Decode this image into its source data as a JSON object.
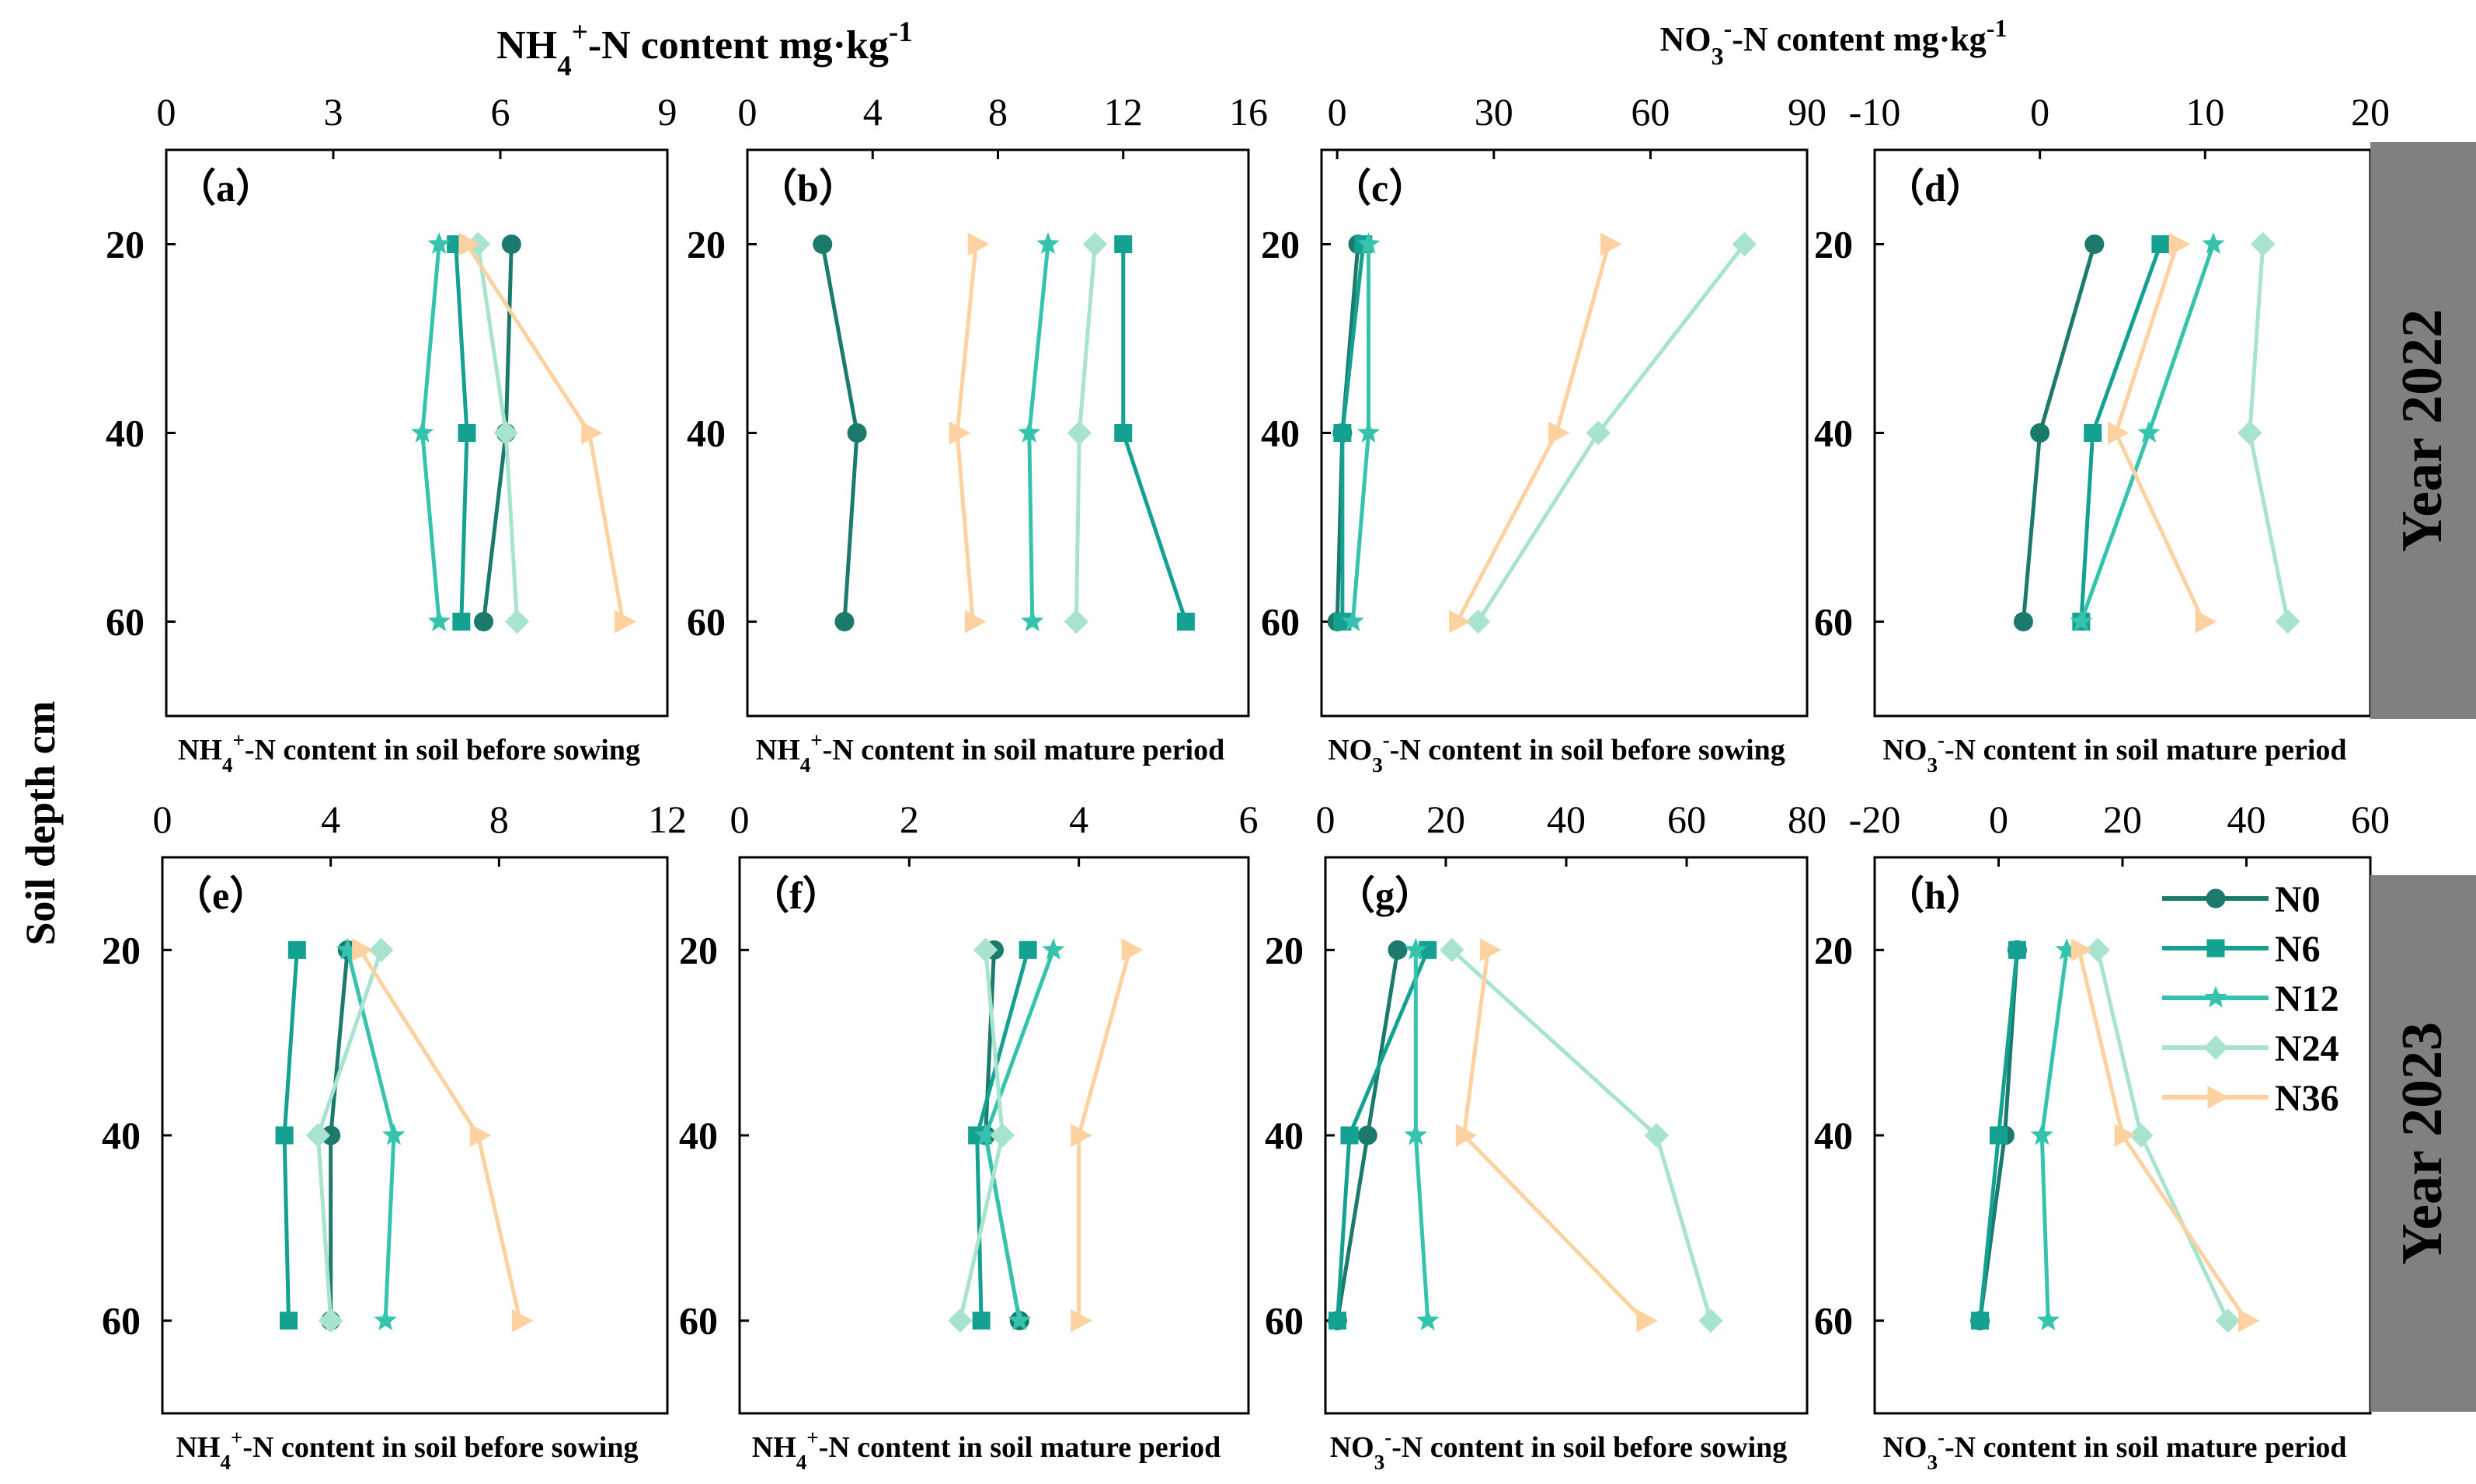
{
  "header": {
    "nh4_content": "NH4+-N content   mg·kg-1",
    "no3_content": "NO3--N content   mg·kg-1"
  },
  "y_axis_label": "Soil depth  cm",
  "year_labels": [
    "Year 2022",
    "Year 2023"
  ],
  "legend": {
    "entries": [
      "N0",
      "N6",
      "N12",
      "N24",
      "N36"
    ]
  },
  "colors": {
    "N0": "#1b7a6c",
    "N6": "#14a191",
    "N12": "#35c3ad",
    "N24": "#a8e3cd",
    "N36": "#fdd2a0",
    "year_band": "#808080"
  },
  "chart_data": [
    {
      "type": "line",
      "panel_label": "（a）",
      "title": "NH4+-N content in soil before sowing",
      "xlim": [
        0,
        9
      ],
      "xticks": [
        0,
        3,
        6,
        9
      ],
      "ylim": [
        70,
        10
      ],
      "yticks": [
        20,
        40,
        60
      ],
      "ylabel": "Soil depth  cm",
      "series": [
        {
          "name": "N0",
          "x": [
            6.2,
            6.1,
            5.7
          ],
          "y": [
            20,
            40,
            60
          ]
        },
        {
          "name": "N6",
          "x": [
            5.2,
            5.4,
            5.3
          ],
          "y": [
            20,
            40,
            60
          ]
        },
        {
          "name": "N12",
          "x": [
            4.9,
            4.6,
            4.9
          ],
          "y": [
            20,
            40,
            60
          ]
        },
        {
          "name": "N24",
          "x": [
            5.6,
            6.1,
            6.3
          ],
          "y": [
            20,
            40,
            60
          ]
        },
        {
          "name": "N36",
          "x": [
            5.4,
            7.6,
            8.2
          ],
          "y": [
            20,
            40,
            60
          ]
        }
      ]
    },
    {
      "type": "line",
      "panel_label": "（b）",
      "title": "NH4+-N content in soil mature period",
      "xlim": [
        0,
        16
      ],
      "xticks": [
        0,
        4,
        8,
        12,
        16
      ],
      "ylim": [
        70,
        10
      ],
      "yticks": [
        20,
        40,
        60
      ],
      "series": [
        {
          "name": "N0",
          "x": [
            2.4,
            3.5,
            3.1
          ],
          "y": [
            20,
            40,
            60
          ]
        },
        {
          "name": "N6",
          "x": [
            12.0,
            12.0,
            14.0
          ],
          "y": [
            20,
            40,
            60
          ]
        },
        {
          "name": "N12",
          "x": [
            9.6,
            9.0,
            9.1
          ],
          "y": [
            20,
            40,
            60
          ]
        },
        {
          "name": "N24",
          "x": [
            11.1,
            10.6,
            10.5
          ],
          "y": [
            20,
            40,
            60
          ]
        },
        {
          "name": "N36",
          "x": [
            7.3,
            6.7,
            7.2
          ],
          "y": [
            20,
            40,
            60
          ]
        }
      ]
    },
    {
      "type": "line",
      "panel_label": "（c）",
      "title": "NO3--N content in soil before sowing",
      "xlim": [
        -3,
        90
      ],
      "xticks": [
        0,
        30,
        60,
        90
      ],
      "ylim": [
        70,
        10
      ],
      "yticks": [
        20,
        40,
        60
      ],
      "series": [
        {
          "name": "N0",
          "x": [
            4,
            1,
            0
          ],
          "y": [
            20,
            40,
            60
          ]
        },
        {
          "name": "N6",
          "x": [
            5,
            1,
            1
          ],
          "y": [
            20,
            40,
            60
          ]
        },
        {
          "name": "N12",
          "x": [
            6,
            6,
            3
          ],
          "y": [
            20,
            40,
            60
          ]
        },
        {
          "name": "N24",
          "x": [
            78,
            50,
            27
          ],
          "y": [
            20,
            40,
            60
          ]
        },
        {
          "name": "N36",
          "x": [
            52,
            42,
            23
          ],
          "y": [
            20,
            40,
            60
          ]
        }
      ]
    },
    {
      "type": "line",
      "panel_label": "（d）",
      "title": "NO3--N content in soil mature period",
      "xlim": [
        -10,
        20
      ],
      "xticks": [
        -10,
        0,
        10,
        20
      ],
      "ylim": [
        70,
        10
      ],
      "yticks": [
        20,
        40,
        60
      ],
      "series": [
        {
          "name": "N0",
          "x": [
            3.3,
            0,
            -1
          ],
          "y": [
            20,
            40,
            60
          ]
        },
        {
          "name": "N6",
          "x": [
            7.3,
            3.2,
            2.5
          ],
          "y": [
            20,
            40,
            60
          ]
        },
        {
          "name": "N12",
          "x": [
            10.5,
            6.6,
            2.5
          ],
          "y": [
            20,
            40,
            60
          ]
        },
        {
          "name": "N24",
          "x": [
            13.5,
            12.7,
            15
          ],
          "y": [
            20,
            40,
            60
          ]
        },
        {
          "name": "N36",
          "x": [
            8.3,
            4.6,
            9.9
          ],
          "y": [
            20,
            40,
            60
          ]
        }
      ]
    },
    {
      "type": "line",
      "panel_label": "（e）",
      "title": "NH4+-N content in soil before sowing",
      "xlim": [
        0,
        12
      ],
      "xticks": [
        0,
        4,
        8,
        12
      ],
      "ylim": [
        70,
        10
      ],
      "yticks": [
        20,
        40,
        60
      ],
      "series": [
        {
          "name": "N0",
          "x": [
            4.4,
            4.0,
            4.0
          ],
          "y": [
            20,
            40,
            60
          ]
        },
        {
          "name": "N6",
          "x": [
            3.2,
            2.9,
            3.0
          ],
          "y": [
            20,
            40,
            60
          ]
        },
        {
          "name": "N12",
          "x": [
            4.4,
            5.5,
            5.3
          ],
          "y": [
            20,
            40,
            60
          ]
        },
        {
          "name": "N24",
          "x": [
            5.2,
            3.7,
            4.0
          ],
          "y": [
            20,
            40,
            60
          ]
        },
        {
          "name": "N36",
          "x": [
            4.7,
            7.5,
            8.5
          ],
          "y": [
            20,
            40,
            60
          ]
        }
      ]
    },
    {
      "type": "line",
      "panel_label": "（f）",
      "title": "NH4+-N content in soil mature period",
      "xlim": [
        0,
        6
      ],
      "xticks": [
        0,
        2,
        4,
        6
      ],
      "ylim": [
        70,
        10
      ],
      "yticks": [
        20,
        40,
        60
      ],
      "series": [
        {
          "name": "N0",
          "x": [
            3.0,
            2.9,
            3.3
          ],
          "y": [
            20,
            40,
            60
          ]
        },
        {
          "name": "N6",
          "x": [
            3.4,
            2.8,
            2.85
          ],
          "y": [
            20,
            40,
            60
          ]
        },
        {
          "name": "N12",
          "x": [
            3.7,
            2.9,
            3.3
          ],
          "y": [
            20,
            40,
            60
          ]
        },
        {
          "name": "N24",
          "x": [
            2.9,
            3.1,
            2.6
          ],
          "y": [
            20,
            40,
            60
          ]
        },
        {
          "name": "N36",
          "x": [
            4.6,
            4.0,
            4.0
          ],
          "y": [
            20,
            40,
            60
          ]
        }
      ]
    },
    {
      "type": "line",
      "panel_label": "（g）",
      "title": "NO3--N content in soil before sowing",
      "xlim": [
        0,
        80
      ],
      "xticks": [
        0,
        20,
        40,
        60,
        80
      ],
      "ylim": [
        70,
        10
      ],
      "yticks": [
        20,
        40,
        60
      ],
      "series": [
        {
          "name": "N0",
          "x": [
            12,
            7,
            2
          ],
          "y": [
            20,
            40,
            60
          ]
        },
        {
          "name": "N6",
          "x": [
            17,
            4,
            2
          ],
          "y": [
            20,
            40,
            60
          ]
        },
        {
          "name": "N12",
          "x": [
            15,
            15,
            17
          ],
          "y": [
            20,
            40,
            60
          ]
        },
        {
          "name": "N24",
          "x": [
            21,
            55,
            64
          ],
          "y": [
            20,
            40,
            60
          ]
        },
        {
          "name": "N36",
          "x": [
            27,
            23,
            53
          ],
          "y": [
            20,
            40,
            60
          ]
        }
      ]
    },
    {
      "type": "line",
      "panel_label": "（h）",
      "title": "NO3--N content in soil mature period",
      "xlim": [
        -20,
        60
      ],
      "xticks": [
        -20,
        0,
        20,
        40,
        60
      ],
      "ylim": [
        70,
        10
      ],
      "yticks": [
        20,
        40,
        60
      ],
      "series": [
        {
          "name": "N0",
          "x": [
            3,
            1,
            -3
          ],
          "y": [
            20,
            40,
            60
          ]
        },
        {
          "name": "N6",
          "x": [
            3,
            0,
            -3
          ],
          "y": [
            20,
            40,
            60
          ]
        },
        {
          "name": "N12",
          "x": [
            11,
            7,
            8
          ],
          "y": [
            20,
            40,
            60
          ]
        },
        {
          "name": "N24",
          "x": [
            16,
            23,
            37
          ],
          "y": [
            20,
            40,
            60
          ]
        },
        {
          "name": "N36",
          "x": [
            13,
            20,
            40
          ],
          "y": [
            20,
            40,
            60
          ]
        }
      ]
    }
  ]
}
